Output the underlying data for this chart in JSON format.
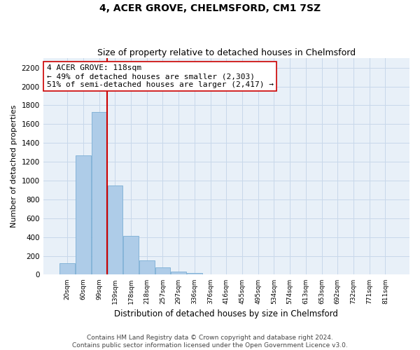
{
  "title": "4, ACER GROVE, CHELMSFORD, CM1 7SZ",
  "subtitle": "Size of property relative to detached houses in Chelmsford",
  "xlabel": "Distribution of detached houses by size in Chelmsford",
  "ylabel": "Number of detached properties",
  "bar_color": "#aecce8",
  "bar_edge_color": "#7aaed4",
  "grid_color": "#c8d8ea",
  "background_color": "#e8f0f8",
  "categories": [
    "20sqm",
    "60sqm",
    "99sqm",
    "139sqm",
    "178sqm",
    "218sqm",
    "257sqm",
    "297sqm",
    "336sqm",
    "376sqm",
    "416sqm",
    "455sqm",
    "495sqm",
    "534sqm",
    "574sqm",
    "613sqm",
    "653sqm",
    "692sqm",
    "732sqm",
    "771sqm",
    "811sqm"
  ],
  "values": [
    120,
    1265,
    1730,
    950,
    410,
    155,
    75,
    32,
    18,
    0,
    0,
    0,
    0,
    0,
    0,
    0,
    0,
    0,
    0,
    0,
    0
  ],
  "ylim": [
    0,
    2300
  ],
  "yticks": [
    0,
    200,
    400,
    600,
    800,
    1000,
    1200,
    1400,
    1600,
    1800,
    2000,
    2200
  ],
  "property_bin_index": 2.5,
  "annotation_text": "4 ACER GROVE: 118sqm\n← 49% of detached houses are smaller (2,303)\n51% of semi-detached houses are larger (2,417) →",
  "red_line_color": "#cc0000",
  "annotation_box_color": "#ffffff",
  "annotation_box_edge": "#cc0000",
  "footer_text": "Contains HM Land Registry data © Crown copyright and database right 2024.\nContains public sector information licensed under the Open Government Licence v3.0.",
  "title_fontsize": 10,
  "subtitle_fontsize": 9,
  "annotation_fontsize": 8,
  "footer_fontsize": 6.5,
  "ylabel_fontsize": 8,
  "xlabel_fontsize": 8.5
}
